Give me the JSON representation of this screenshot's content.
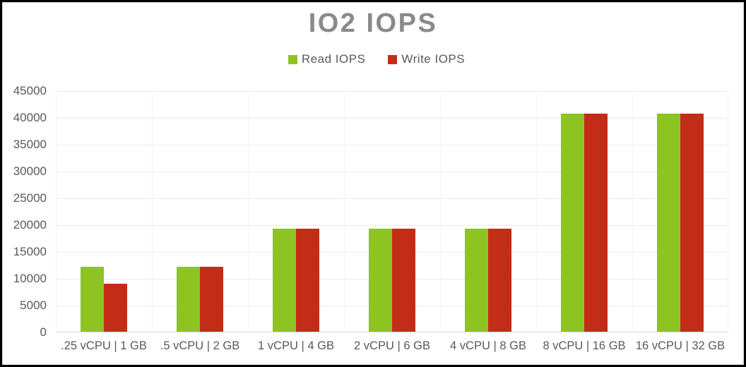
{
  "chart_data": {
    "type": "bar",
    "title": "IO2 IOPS",
    "categories": [
      ".25 vCPU | 1 GB",
      ".5 vCPU | 2 GB",
      "1 vCPU | 4 GB",
      "2 vCPU | 6 GB",
      "4 vCPU | 8 GB",
      "8 vCPU | 16 GB",
      "16 vCPU | 32 GB"
    ],
    "series": [
      {
        "name": "Read IOPS",
        "color": "#8dc422",
        "values": [
          12100,
          12100,
          19200,
          19200,
          19200,
          40600,
          40600
        ]
      },
      {
        "name": "Write IOPS",
        "color": "#c32d18",
        "values": [
          8900,
          12100,
          19200,
          19200,
          19200,
          40600,
          40600
        ]
      }
    ],
    "xlabel": "",
    "ylabel": "",
    "ylim": [
      0,
      45000
    ],
    "ytick_step": 5000,
    "grid": "horizontal gridlines plus vertical category separators",
    "legend_position": "top-center",
    "colors": {
      "title_text": "#8a8a8a",
      "axis_text": "#595959",
      "gridline": "#ebebeb",
      "category_separator": "#f2f2f2",
      "baseline": "#d6d6d6",
      "frame_border": "#000000"
    }
  }
}
